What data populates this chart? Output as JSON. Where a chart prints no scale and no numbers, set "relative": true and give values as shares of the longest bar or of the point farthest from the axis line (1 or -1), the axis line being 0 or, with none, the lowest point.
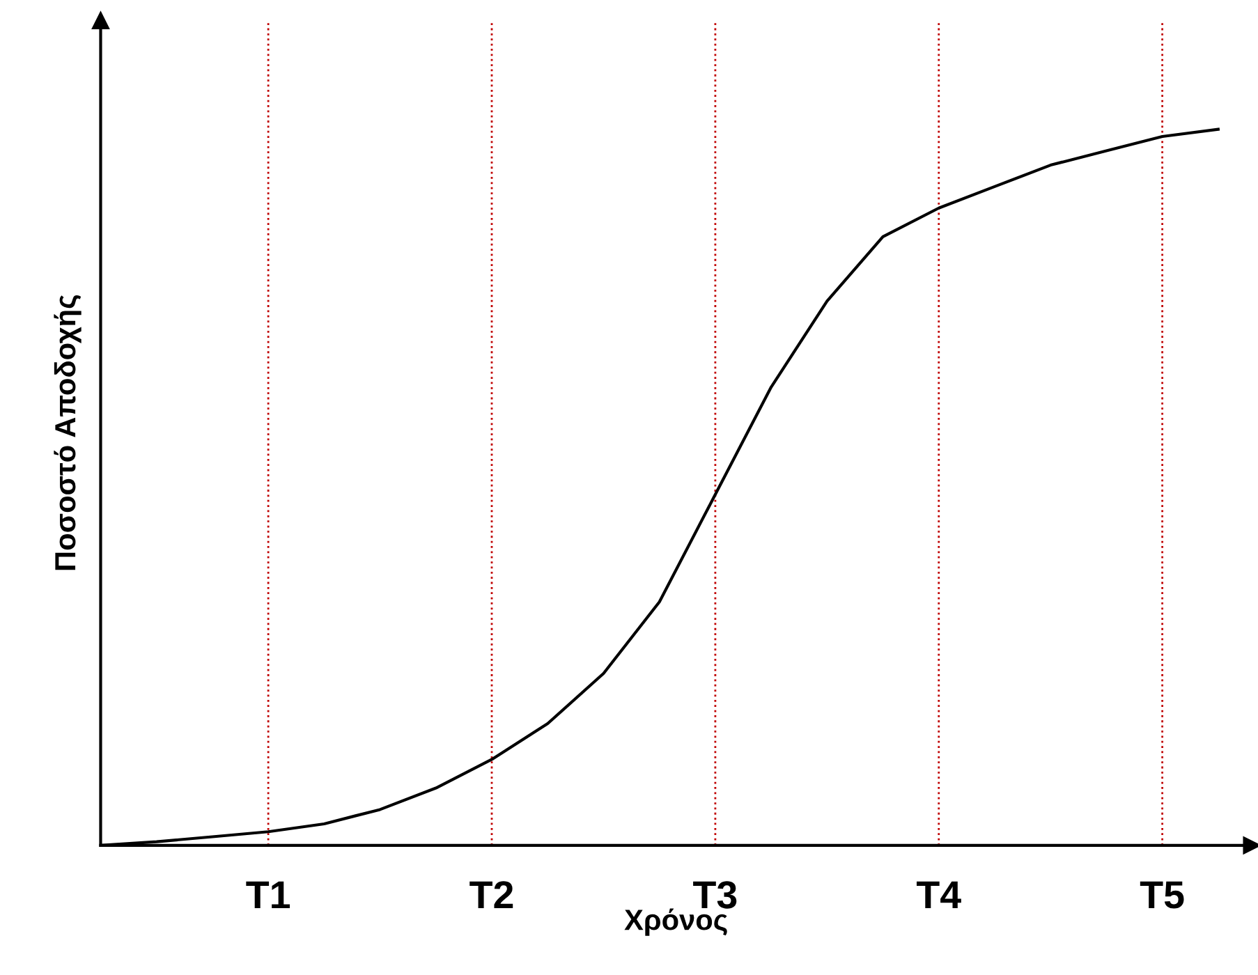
{
  "chart_data": {
    "type": "line",
    "relative": true,
    "xlabel": "Χρόνος",
    "ylabel": "Ποσοστό Αποδοχής",
    "categories": [
      null,
      null,
      null,
      "T1",
      null,
      null,
      null,
      "T2",
      null,
      null,
      null,
      "T3",
      null,
      null,
      null,
      "T4",
      null,
      null,
      null,
      "T5",
      null
    ],
    "series": [
      {
        "color": "#000000",
        "values": [
          0,
          0.005,
          0.012,
          0.019,
          0.03,
          0.05,
          0.08,
          0.12,
          0.17,
          0.24,
          0.34,
          0.49,
          0.64,
          0.76,
          0.85,
          0.89,
          0.92,
          0.95,
          0.97,
          0.99,
          1
        ]
      }
    ],
    "tick_labels": "x",
    "grid": false,
    "legend": false,
    "marker": "none",
    "line_style": "solid",
    "ref_lines": [
      {
        "axis": "x",
        "value": "T1",
        "color": "#c00000",
        "line_style": "dotted"
      },
      {
        "axis": "x",
        "value": "T2",
        "color": "#c00000",
        "line_style": "dotted"
      },
      {
        "axis": "x",
        "value": "T3",
        "color": "#c00000",
        "line_style": "dotted"
      },
      {
        "axis": "x",
        "value": "T4",
        "color": "#c00000",
        "line_style": "dotted"
      },
      {
        "axis": "x",
        "value": "T5",
        "color": "#c00000",
        "line_style": "dotted"
      }
    ]
  }
}
